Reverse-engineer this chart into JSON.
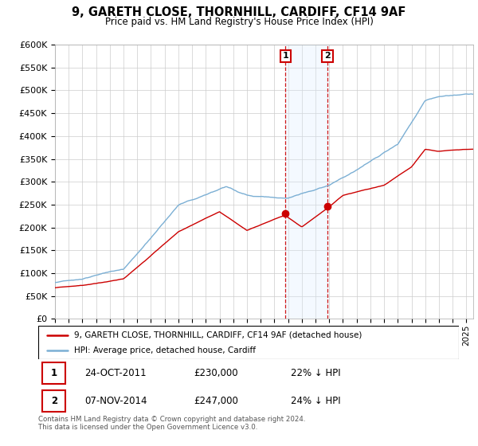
{
  "title": "9, GARETH CLOSE, THORNHILL, CARDIFF, CF14 9AF",
  "subtitle": "Price paid vs. HM Land Registry's House Price Index (HPI)",
  "legend_line1": "9, GARETH CLOSE, THORNHILL, CARDIFF, CF14 9AF (detached house)",
  "legend_line2": "HPI: Average price, detached house, Cardiff",
  "footnote1": "Contains HM Land Registry data © Crown copyright and database right 2024.",
  "footnote2": "This data is licensed under the Open Government Licence v3.0.",
  "event1_label": "1",
  "event1_date": "24-OCT-2011",
  "event1_price": "£230,000",
  "event1_hpi": "22% ↓ HPI",
  "event1_year": 2011.81,
  "event1_value": 230000,
  "event2_label": "2",
  "event2_date": "07-NOV-2014",
  "event2_price": "£247,000",
  "event2_hpi": "24% ↓ HPI",
  "event2_year": 2014.86,
  "event2_value": 247000,
  "property_color": "#cc0000",
  "hpi_color": "#7bafd4",
  "background_color": "#ffffff",
  "grid_color": "#cccccc",
  "shade_color": "#ddeeff",
  "ylim": [
    0,
    600000
  ],
  "xlim_start": 1995,
  "xlim_end": 2025.5
}
